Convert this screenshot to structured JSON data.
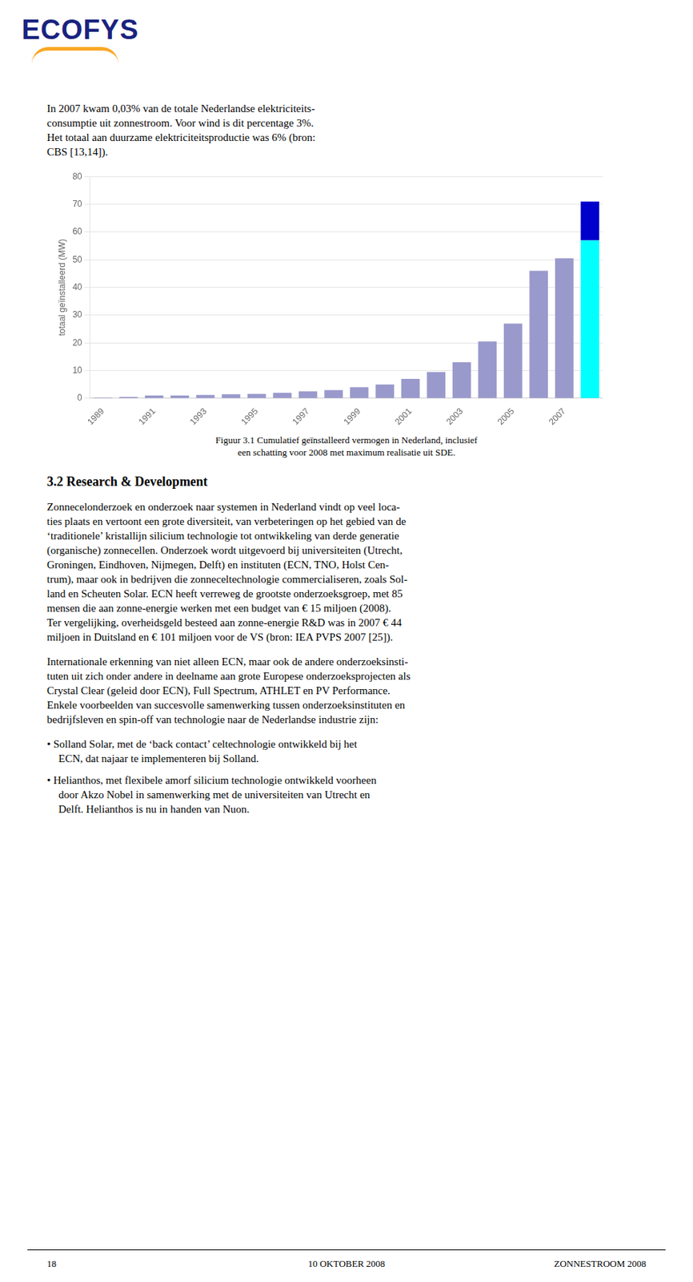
{
  "chart_data": {
    "type": "bar",
    "categories": [
      "1989",
      null,
      "1991",
      null,
      "1993",
      null,
      "1995",
      null,
      "1997",
      null,
      "1999",
      null,
      "2001",
      null,
      "2003",
      null,
      "2005",
      null,
      "2007",
      null
    ],
    "series": [
      {
        "colors": [
          "#9999CC",
          "#9999CC",
          "#9999CC",
          "#9999CC",
          "#9999CC",
          "#9999CC",
          "#9999CC",
          "#9999CC",
          "#9999CC",
          "#9999CC",
          "#9999CC",
          "#9999CC",
          "#9999CC",
          "#9999CC",
          "#9999CC",
          "#9999CC",
          "#9999CC",
          "#9999CC",
          "#9999CC",
          "#00FFFF"
        ],
        "values": [
          0.3,
          0.5,
          1.0,
          1.0,
          1.2,
          1.5,
          1.6,
          2.0,
          2.5,
          3.0,
          4.0,
          5.0,
          7.0,
          9.5,
          13.0,
          20.5,
          27.0,
          46.0,
          50.5,
          57.0
        ]
      },
      {
        "color": "#0000CC",
        "values": [
          0,
          0,
          0,
          0,
          0,
          0,
          0,
          0,
          0,
          0,
          0,
          0,
          0,
          0,
          0,
          0,
          0,
          0,
          0,
          14.0
        ]
      }
    ],
    "stacked": true,
    "ylabel": "totaal geïnstalleerd (MW)",
    "ylim": [
      0,
      80
    ],
    "yticks": [
      0,
      10,
      20,
      30,
      40,
      50,
      60,
      70,
      80
    ],
    "grid": true,
    "annotations": [
      "ECO",
      "FYS",
      "In 2007 kwam 0,03% van de totale Nederlandse elektriciteits-\nconsumptie uit zonnestroom. Voor wind is dit percentage 3%.\nHet totaal aan duurzame elektriciteitsproductie was 6% (bron:\nCBS [13,14]).",
      "Figuur 3.1  Cumulatief geïnstalleerd vermogen in Nederland, inclusief\neen schatting voor 2008 met maximum realisatie uit SDE.",
      "3.2  Research & Development",
      "Zonnecelonderzoek en onderzoek naar systemen in Nederland vindt op veel loca-\nties plaats en vertoont een grote diversiteit, van verbeteringen op het gebied van de\n‘traditionele’ kristallijn silicium technologie tot ontwikkeling van derde generatie\n(organische) zonnecellen. Onderzoek wordt uitgevoerd bij universiteiten (Utrecht,\nGroningen, Eindhoven, Nijmegen, Delft) en instituten (ECN, TNO, Holst Cen-\ntrum), maar ook in bedrijven die zonneceltechnologie commercialiseren, zoals Sol-\nland en Scheuten Solar. ECN heeft verreweg de grootste onderzoeksgroep, met 85\nmensen die aan zonne-energie werken met een budget van € 15 miljoen (2008).\nTer vergelijking, overheidsgeld besteed aan zonne-energie R&D was in 2007 € 44\nmiljoen in Duitsland en € 101 miljoen voor de VS (bron: IEA PVPS 2007 [25]).",
      "Internationale erkenning van niet alleen ECN, maar ook de andere onderzoeksinsti-\ntuten uit zich onder andere in deelname aan grote Europese onderzoeksprojecten als\nCrystal Clear (geleid door ECN), Full Spectrum, ATHLET en PV Performance.\nEnkele voorbeelden van succesvolle samenwerking tussen onderzoeksinstituten en\nbedrijfsleven en spin-off van technologie naar de Nederlandse industrie zijn:",
      "• Solland Solar, met de ‘back contact’ celtechnologie ontwikkeld bij het\nECN, dat najaar te implementeren bij Solland.",
      "• Helianthos, met flexibele amorf silicium technologie ontwikkeld voorheen\ndoor Akzo Nobel in samenwerking met de universiteiten van Utrecht en\nDelft. Helianthos is nu in handen van Nuon.",
      "18",
      "10 OKTOBER 2008",
      "ZONNESTROOM 2008"
    ]
  }
}
